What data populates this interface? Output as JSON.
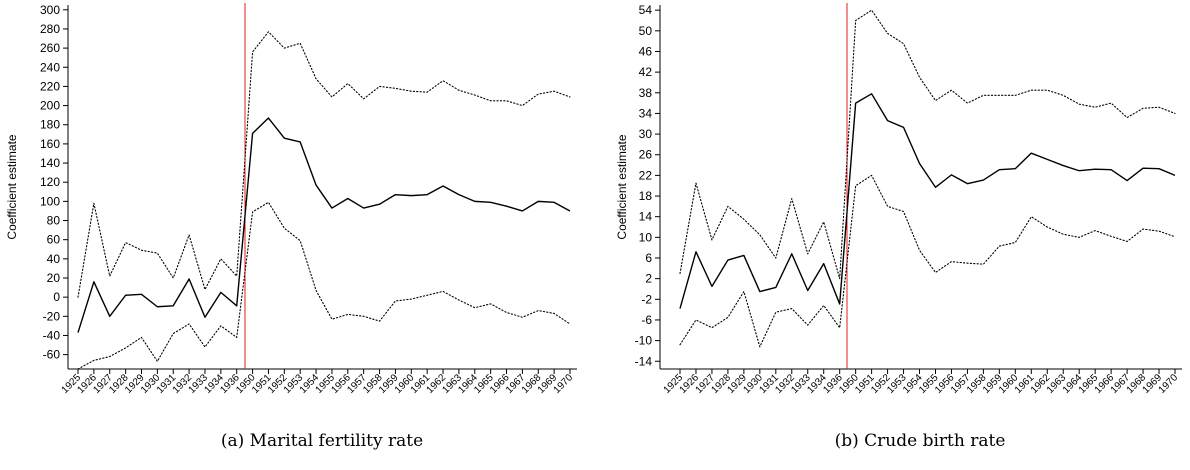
{
  "chart_data": [
    {
      "type": "line",
      "caption": "(a) Marital fertility rate",
      "ylabel": "Coefficient estimate",
      "categories": [
        "1925",
        "1926",
        "1927",
        "1928",
        "1929",
        "1930",
        "1931",
        "1932",
        "1933",
        "1934",
        "1936",
        "1950",
        "1951",
        "1952",
        "1953",
        "1954",
        "1955",
        "1956",
        "1957",
        "1958",
        "1959",
        "1960",
        "1961",
        "1962",
        "1963",
        "1964",
        "1965",
        "1966",
        "1967",
        "1968",
        "1969",
        "1970"
      ],
      "y_ticks": [
        -60,
        -40,
        -20,
        0,
        20,
        40,
        60,
        80,
        100,
        120,
        140,
        160,
        180,
        200,
        220,
        240,
        260,
        280,
        300
      ],
      "ylim": [
        -75,
        305
      ],
      "reference_line": {
        "between": [
          "1936",
          "1950"
        ],
        "color": "#e0201b"
      },
      "series": [
        {
          "role": "estimate",
          "style": "solid",
          "values": [
            -37,
            16,
            -20,
            2,
            3,
            -10,
            -9,
            19,
            -21,
            5,
            -9,
            171,
            187,
            166,
            162,
            117,
            93,
            103,
            93,
            97,
            107,
            106,
            107,
            116,
            107,
            100,
            99,
            95,
            90,
            100,
            99,
            90
          ]
        },
        {
          "role": "upper-ci",
          "style": "dotted",
          "values": [
            0,
            98,
            22,
            57,
            49,
            46,
            20,
            65,
            8,
            40,
            22,
            256,
            277,
            260,
            265,
            228,
            209,
            223,
            207,
            220,
            218,
            215,
            214,
            226,
            216,
            211,
            205,
            205,
            200,
            212,
            215,
            209
          ]
        },
        {
          "role": "lower-ci",
          "style": "dotted",
          "values": [
            -75,
            -66,
            -62,
            -53,
            -42,
            -67,
            -38,
            -28,
            -52,
            -30,
            -42,
            89,
            99,
            72,
            59,
            7,
            -23,
            -18,
            -20,
            -25,
            -4,
            -2,
            2,
            6,
            -3,
            -11,
            -7,
            -16,
            -21,
            -14,
            -17,
            -28
          ]
        }
      ]
    },
    {
      "type": "line",
      "caption": "(b) Crude birth rate",
      "ylabel": "Coefficient estimate",
      "categories": [
        "1925",
        "1926",
        "1927",
        "1928",
        "1929",
        "1930",
        "1931",
        "1932",
        "1933",
        "1934",
        "1936",
        "1950",
        "1951",
        "1952",
        "1953",
        "1954",
        "1955",
        "1956",
        "1957",
        "1958",
        "1959",
        "1960",
        "1961",
        "1962",
        "1963",
        "1964",
        "1965",
        "1966",
        "1967",
        "1968",
        "1969",
        "1970"
      ],
      "y_ticks": [
        -14,
        -10,
        -6,
        -2,
        2,
        6,
        10,
        14,
        18,
        22,
        26,
        30,
        34,
        38,
        42,
        46,
        50,
        54
      ],
      "ylim": [
        -15.5,
        55
      ],
      "reference_line": {
        "between": [
          "1936",
          "1950"
        ],
        "color": "#e0201b"
      },
      "series": [
        {
          "role": "estimate",
          "style": "solid",
          "values": [
            -3.8,
            7.2,
            0.5,
            5.6,
            6.5,
            -0.5,
            0.3,
            6.8,
            -0.3,
            4.9,
            -2.9,
            36.0,
            37.8,
            32.6,
            31.3,
            24.3,
            19.7,
            22.1,
            20.4,
            21.1,
            23.1,
            23.3,
            26.3,
            25.1,
            23.9,
            22.9,
            23.2,
            23.1,
            21.0,
            23.4,
            23.3,
            22.0
          ]
        },
        {
          "role": "upper-ci",
          "style": "dotted",
          "values": [
            3.0,
            20.5,
            9.5,
            16.0,
            13.5,
            10.5,
            6.0,
            17.5,
            6.8,
            13.0,
            2.0,
            52.0,
            54.0,
            49.5,
            47.5,
            41.0,
            36.5,
            38.5,
            36.0,
            37.5,
            37.5,
            37.5,
            38.5,
            38.5,
            37.5,
            35.8,
            35.2,
            36.0,
            33.2,
            35.0,
            35.2,
            34.0
          ]
        },
        {
          "role": "lower-ci",
          "style": "dotted",
          "values": [
            -10.8,
            -6.0,
            -7.5,
            -5.5,
            -0.5,
            -11.2,
            -4.5,
            -3.8,
            -7.0,
            -3.2,
            -7.5,
            20.0,
            22.0,
            16.0,
            15.0,
            7.5,
            3.2,
            5.3,
            5.0,
            4.8,
            8.3,
            9.0,
            14.0,
            12.0,
            10.6,
            10.0,
            11.3,
            10.2,
            9.2,
            11.6,
            11.2,
            10.1
          ]
        }
      ]
    }
  ]
}
